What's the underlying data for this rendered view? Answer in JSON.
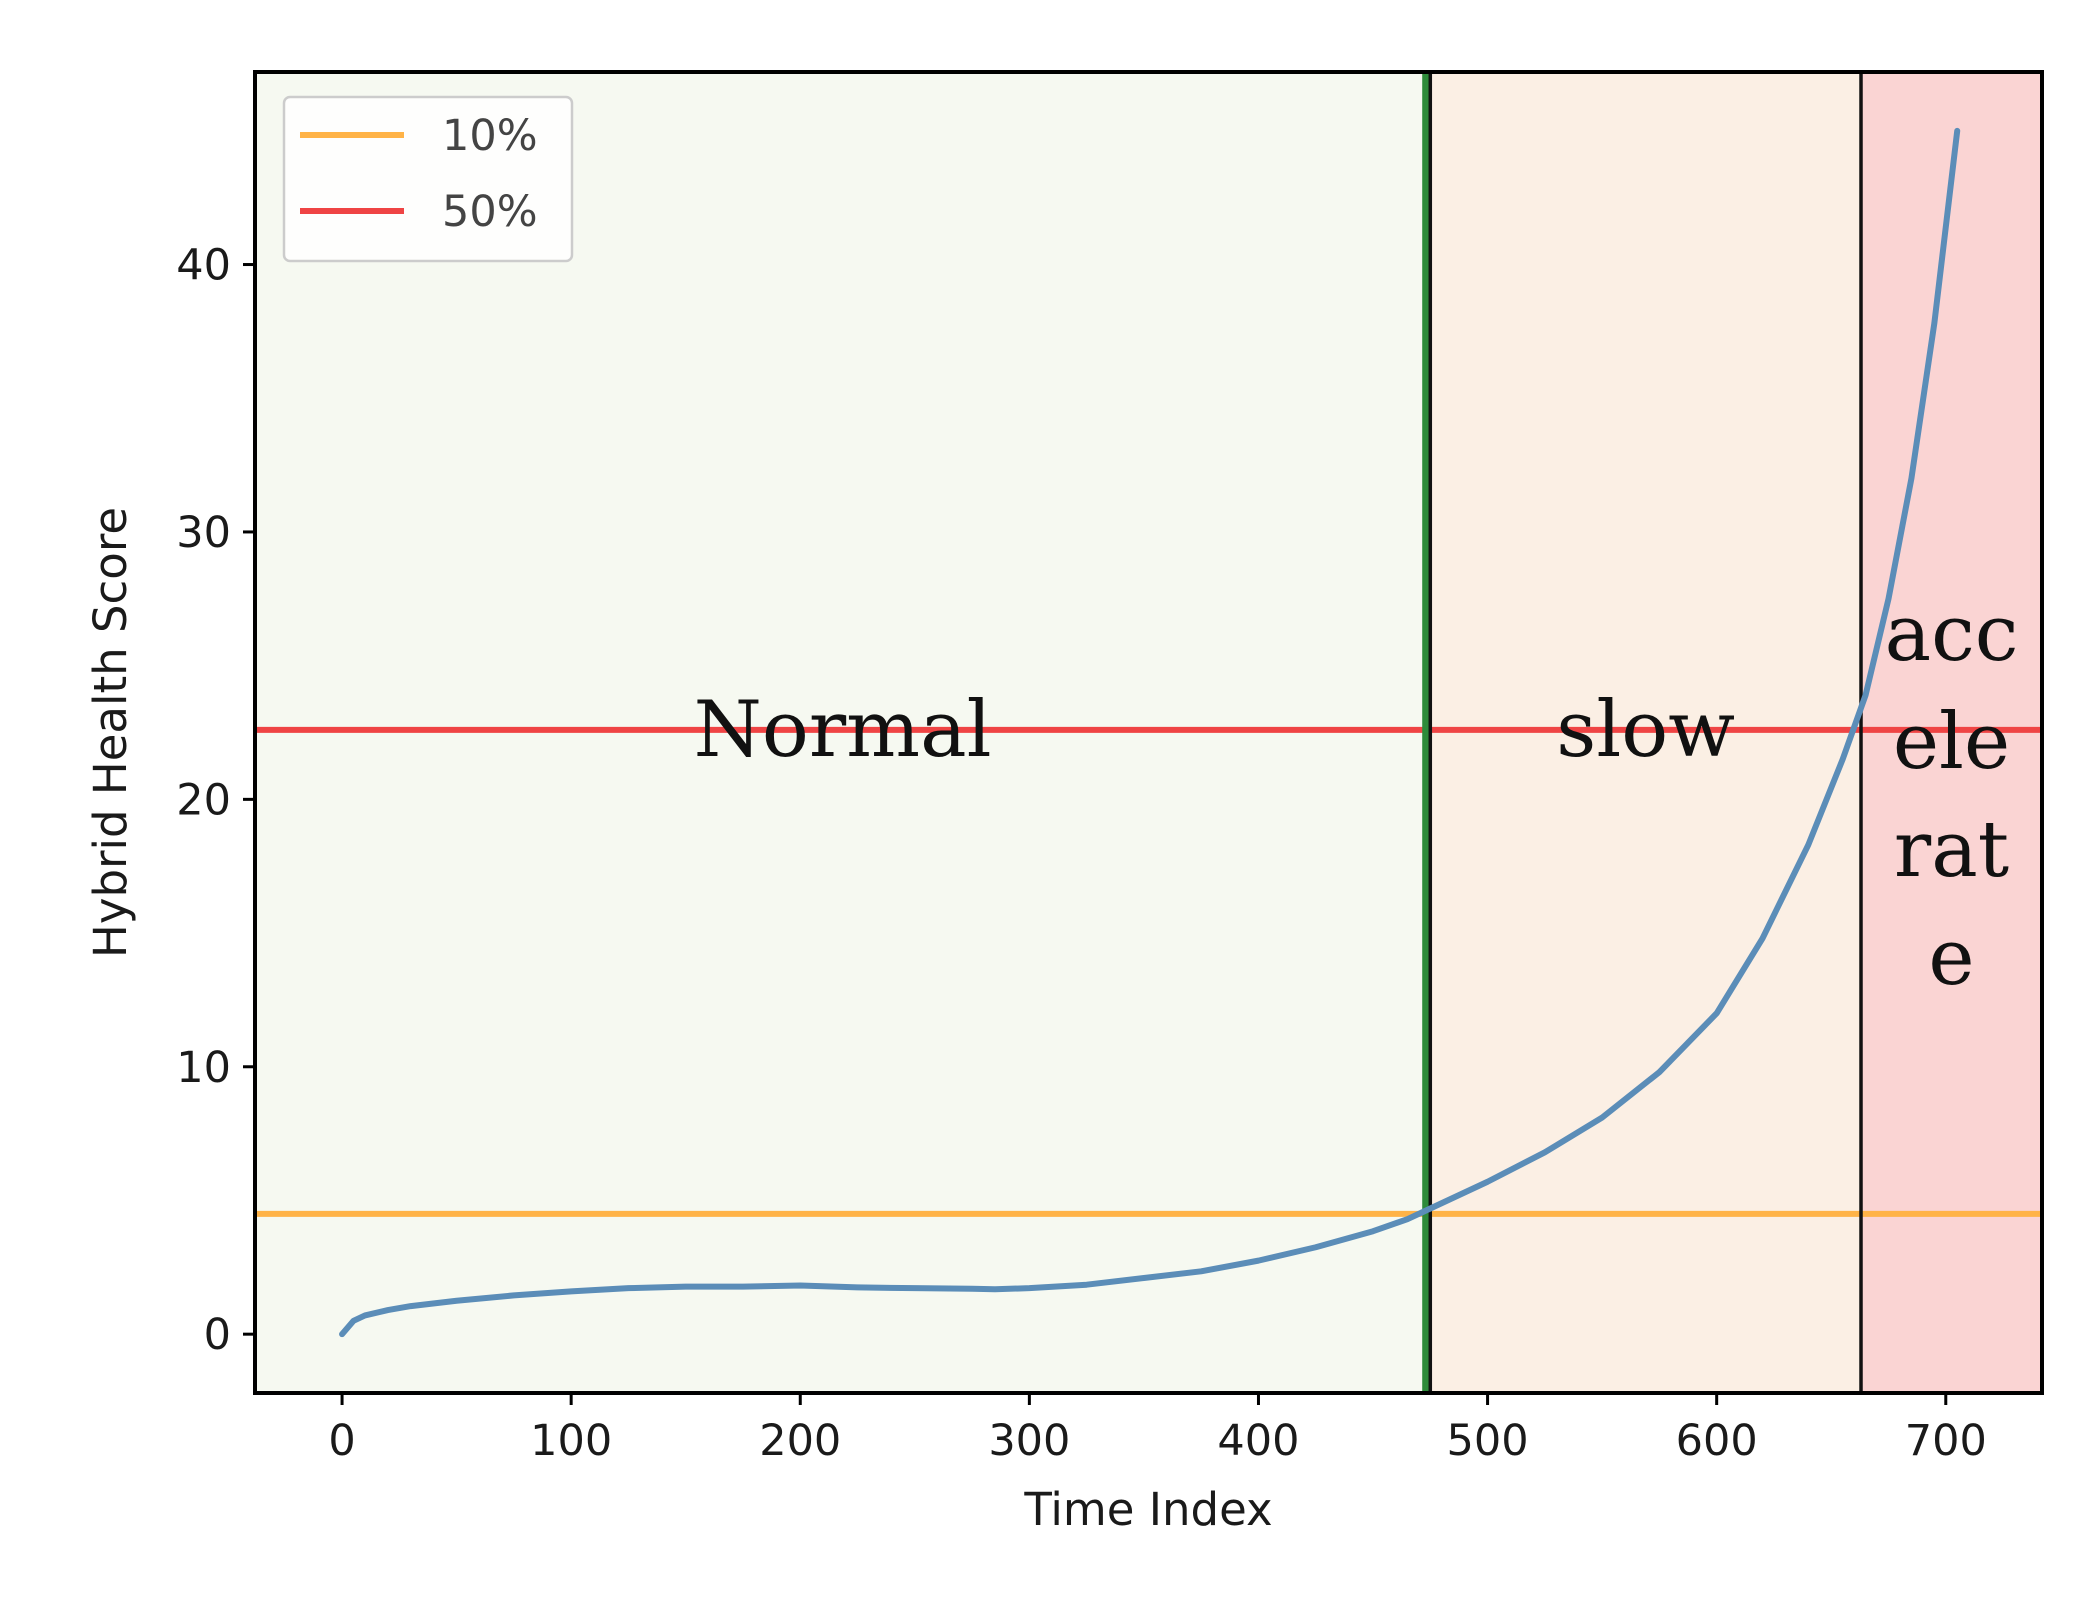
{
  "chart_data": {
    "type": "line",
    "title": "",
    "xlabel": "Time Index",
    "ylabel": "Hybrid Health Score",
    "xlim": [
      -38,
      742
    ],
    "ylim": [
      -2.2,
      47.2
    ],
    "xticks": [
      0,
      100,
      200,
      300,
      400,
      500,
      600,
      700
    ],
    "yticks": [
      0,
      10,
      20,
      30,
      40
    ],
    "grid": false,
    "legend_position": "top-left",
    "series": [
      {
        "name": "Hybrid Health Score",
        "color": "#5b8db8",
        "x": [
          0,
          5,
          10,
          20,
          30,
          50,
          75,
          100,
          125,
          150,
          175,
          200,
          225,
          250,
          275,
          285,
          300,
          325,
          350,
          375,
          400,
          425,
          450,
          465,
          475,
          500,
          525,
          550,
          575,
          600,
          620,
          640,
          655,
          665,
          675,
          685,
          695,
          705
        ],
        "y": [
          0,
          0.5,
          0.7,
          0.9,
          1.05,
          1.25,
          1.45,
          1.6,
          1.72,
          1.78,
          1.78,
          1.82,
          1.75,
          1.72,
          1.7,
          1.68,
          1.72,
          1.85,
          2.1,
          2.35,
          2.75,
          3.25,
          3.85,
          4.3,
          4.7,
          5.7,
          6.8,
          8.1,
          9.8,
          12.0,
          14.8,
          18.3,
          21.5,
          23.9,
          27.5,
          32.0,
          37.8,
          45.0
        ]
      }
    ],
    "thresholds": [
      {
        "label": "10%",
        "value": 4.5,
        "color": "#ffb347"
      },
      {
        "label": "50%",
        "value": 22.6,
        "color": "#ef4444"
      }
    ],
    "regions": [
      {
        "label": "Normal",
        "x_start": -38,
        "x_end": 475,
        "color": "#f6f9f1"
      },
      {
        "label": "slow",
        "x_start": 475,
        "x_end": 663,
        "color": "#fbefe4"
      },
      {
        "label_lines": [
          "acc",
          "ele",
          "rat",
          "e"
        ],
        "x_start": 663,
        "x_end": 742,
        "color": "#fad4d3"
      }
    ],
    "boundaries": [
      {
        "x": 473,
        "color": "#2e8b3a"
      },
      {
        "x": 475,
        "color": "#111111"
      },
      {
        "x": 663,
        "color": "#111111"
      }
    ]
  }
}
